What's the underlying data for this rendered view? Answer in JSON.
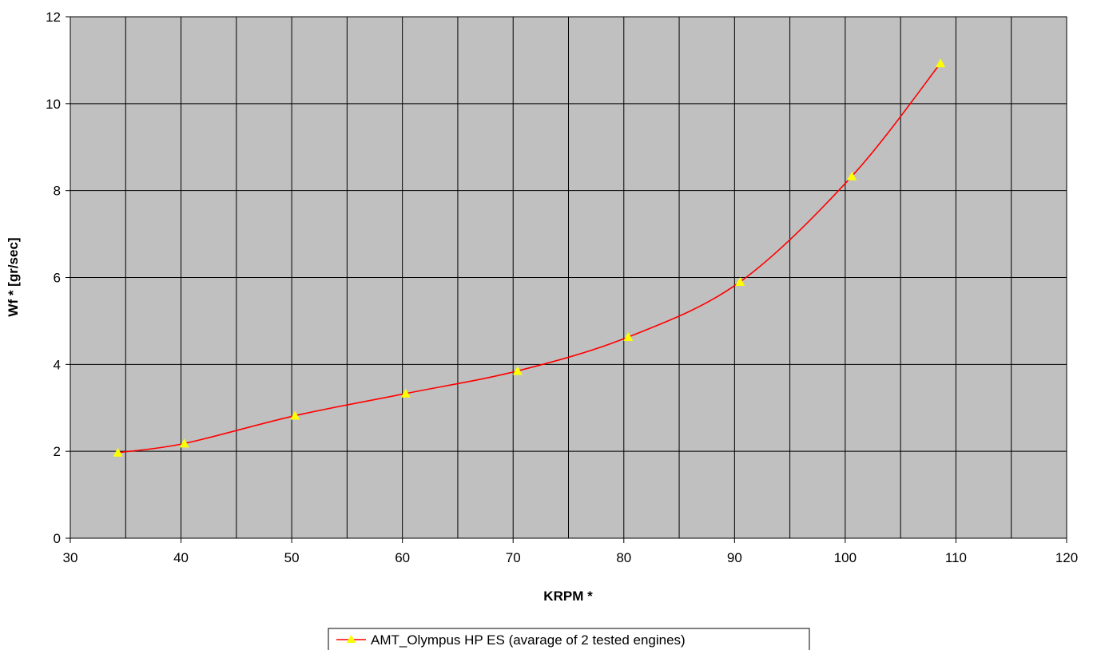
{
  "chart_data": {
    "type": "line",
    "title": "",
    "xlabel": "KRPM *",
    "ylabel": "Wf * [gr/sec]",
    "xlim": [
      30,
      120
    ],
    "ylim": [
      0,
      12
    ],
    "x_ticks": [
      "30",
      "40",
      "50",
      "60",
      "70",
      "80",
      "90",
      "100",
      "110",
      "120"
    ],
    "y_ticks": [
      "0",
      "2",
      "4",
      "6",
      "8",
      "10",
      "12"
    ],
    "x_gridlines": [
      35,
      40,
      45,
      50,
      55,
      60,
      65,
      70,
      75,
      80,
      85,
      90,
      95,
      100,
      105,
      110,
      115
    ],
    "y_gridlines": [
      2,
      4,
      6,
      8,
      10
    ],
    "grid": true,
    "plot_background": "#c0c0c0",
    "legend_position": "bottom-center",
    "series": [
      {
        "name": "AMT_Olympus HP ES (avarage of 2 tested engines)",
        "line_color": "#ff0000",
        "marker": "triangle",
        "marker_color": "#ffff00",
        "x": [
          34.3,
          40.3,
          50.3,
          60.3,
          70.4,
          80.4,
          90.5,
          100.6,
          108.6
        ],
        "y": [
          1.97,
          2.18,
          2.82,
          3.33,
          3.85,
          4.63,
          5.9,
          8.33,
          10.93
        ]
      }
    ]
  }
}
